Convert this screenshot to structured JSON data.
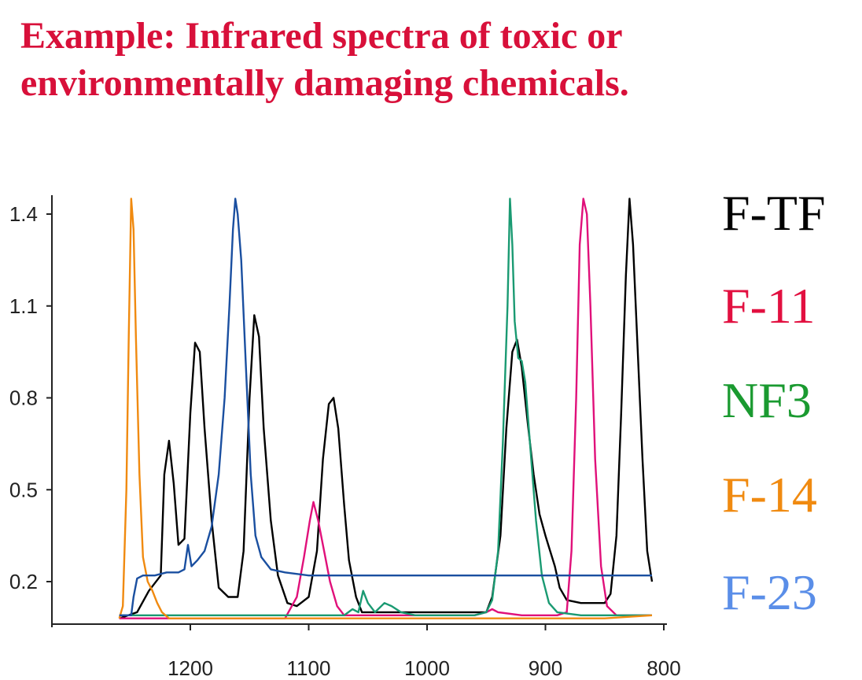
{
  "title": {
    "line1": "Example: Infrared spectra of toxic or",
    "line2": "environmentally damaging chemicals."
  },
  "chart_data": {
    "type": "line",
    "x_ticks": [
      1200,
      1100,
      1000,
      900,
      800
    ],
    "y_ticks": [
      "1.4",
      "1.1",
      "0.8",
      "0.5",
      "0.2"
    ],
    "xlim": [
      1260,
      800
    ],
    "ylim": [
      0.08,
      1.48
    ],
    "series": [
      {
        "name": "F-TF",
        "color": "#000000",
        "points": [
          [
            1260,
            0.08
          ],
          [
            1245,
            0.1
          ],
          [
            1235,
            0.17
          ],
          [
            1225,
            0.22
          ],
          [
            1222,
            0.55
          ],
          [
            1218,
            0.66
          ],
          [
            1214,
            0.52
          ],
          [
            1210,
            0.32
          ],
          [
            1205,
            0.34
          ],
          [
            1200,
            0.75
          ],
          [
            1196,
            0.98
          ],
          [
            1192,
            0.95
          ],
          [
            1188,
            0.7
          ],
          [
            1182,
            0.4
          ],
          [
            1176,
            0.18
          ],
          [
            1168,
            0.15
          ],
          [
            1160,
            0.15
          ],
          [
            1155,
            0.3
          ],
          [
            1150,
            0.8
          ],
          [
            1146,
            1.07
          ],
          [
            1142,
            1.0
          ],
          [
            1138,
            0.7
          ],
          [
            1132,
            0.4
          ],
          [
            1126,
            0.22
          ],
          [
            1118,
            0.13
          ],
          [
            1110,
            0.12
          ],
          [
            1100,
            0.15
          ],
          [
            1093,
            0.3
          ],
          [
            1088,
            0.6
          ],
          [
            1083,
            0.78
          ],
          [
            1079,
            0.8
          ],
          [
            1075,
            0.7
          ],
          [
            1070,
            0.45
          ],
          [
            1066,
            0.27
          ],
          [
            1060,
            0.15
          ],
          [
            1055,
            0.1
          ],
          [
            1045,
            0.1
          ],
          [
            1035,
            0.1
          ],
          [
            1025,
            0.1
          ],
          [
            1015,
            0.1
          ],
          [
            1005,
            0.1
          ],
          [
            995,
            0.1
          ],
          [
            985,
            0.1
          ],
          [
            975,
            0.1
          ],
          [
            965,
            0.1
          ],
          [
            955,
            0.1
          ],
          [
            950,
            0.1
          ],
          [
            945,
            0.15
          ],
          [
            938,
            0.35
          ],
          [
            933,
            0.7
          ],
          [
            928,
            0.95
          ],
          [
            924,
            0.99
          ],
          [
            920,
            0.9
          ],
          [
            915,
            0.72
          ],
          [
            910,
            0.55
          ],
          [
            905,
            0.42
          ],
          [
            900,
            0.35
          ],
          [
            896,
            0.3
          ],
          [
            892,
            0.25
          ],
          [
            888,
            0.18
          ],
          [
            882,
            0.14
          ],
          [
            870,
            0.13
          ],
          [
            860,
            0.13
          ],
          [
            850,
            0.13
          ],
          [
            845,
            0.16
          ],
          [
            840,
            0.35
          ],
          [
            836,
            0.75
          ],
          [
            832,
            1.2
          ],
          [
            829,
            1.45
          ],
          [
            826,
            1.3
          ],
          [
            822,
            0.95
          ],
          [
            818,
            0.6
          ],
          [
            814,
            0.3
          ],
          [
            810,
            0.2
          ]
        ]
      },
      {
        "name": "F-11",
        "color": "#e0107a",
        "points": [
          [
            1260,
            0.08
          ],
          [
            1200,
            0.08
          ],
          [
            1150,
            0.08
          ],
          [
            1120,
            0.08
          ],
          [
            1110,
            0.15
          ],
          [
            1104,
            0.28
          ],
          [
            1099,
            0.4
          ],
          [
            1096,
            0.46
          ],
          [
            1092,
            0.4
          ],
          [
            1087,
            0.3
          ],
          [
            1082,
            0.2
          ],
          [
            1076,
            0.12
          ],
          [
            1070,
            0.09
          ],
          [
            1060,
            0.09
          ],
          [
            1000,
            0.09
          ],
          [
            980,
            0.09
          ],
          [
            960,
            0.09
          ],
          [
            950,
            0.1
          ],
          [
            945,
            0.11
          ],
          [
            940,
            0.1
          ],
          [
            920,
            0.09
          ],
          [
            900,
            0.09
          ],
          [
            890,
            0.09
          ],
          [
            882,
            0.1
          ],
          [
            878,
            0.3
          ],
          [
            874,
            0.8
          ],
          [
            871,
            1.3
          ],
          [
            868,
            1.45
          ],
          [
            865,
            1.4
          ],
          [
            862,
            1.1
          ],
          [
            858,
            0.6
          ],
          [
            853,
            0.25
          ],
          [
            848,
            0.12
          ],
          [
            840,
            0.09
          ],
          [
            820,
            0.09
          ],
          [
            810,
            0.09
          ]
        ]
      },
      {
        "name": "NF3",
        "color": "#1a9a72",
        "points": [
          [
            1260,
            0.09
          ],
          [
            1200,
            0.09
          ],
          [
            1150,
            0.09
          ],
          [
            1100,
            0.09
          ],
          [
            1070,
            0.09
          ],
          [
            1063,
            0.11
          ],
          [
            1058,
            0.1
          ],
          [
            1054,
            0.17
          ],
          [
            1050,
            0.13
          ],
          [
            1044,
            0.1
          ],
          [
            1036,
            0.13
          ],
          [
            1030,
            0.12
          ],
          [
            1022,
            0.1
          ],
          [
            1010,
            0.09
          ],
          [
            1000,
            0.09
          ],
          [
            980,
            0.09
          ],
          [
            960,
            0.09
          ],
          [
            950,
            0.1
          ],
          [
            945,
            0.14
          ],
          [
            940,
            0.3
          ],
          [
            936,
            0.65
          ],
          [
            932,
            1.1
          ],
          [
            930,
            1.45
          ],
          [
            928,
            1.3
          ],
          [
            926,
            1.05
          ],
          [
            923,
            0.93
          ],
          [
            920,
            0.92
          ],
          [
            917,
            0.85
          ],
          [
            913,
            0.65
          ],
          [
            908,
            0.4
          ],
          [
            903,
            0.22
          ],
          [
            897,
            0.13
          ],
          [
            890,
            0.1
          ],
          [
            870,
            0.09
          ],
          [
            840,
            0.09
          ],
          [
            810,
            0.09
          ]
        ]
      },
      {
        "name": "F-14",
        "color": "#f08a10",
        "points": [
          [
            1260,
            0.08
          ],
          [
            1257,
            0.12
          ],
          [
            1254,
            0.5
          ],
          [
            1252,
            1.0
          ],
          [
            1250,
            1.45
          ],
          [
            1248,
            1.35
          ],
          [
            1246,
            1.0
          ],
          [
            1243,
            0.55
          ],
          [
            1240,
            0.28
          ],
          [
            1236,
            0.2
          ],
          [
            1232,
            0.17
          ],
          [
            1228,
            0.13
          ],
          [
            1224,
            0.1
          ],
          [
            1218,
            0.08
          ],
          [
            1200,
            0.08
          ],
          [
            1150,
            0.08
          ],
          [
            1100,
            0.08
          ],
          [
            1050,
            0.08
          ],
          [
            1000,
            0.08
          ],
          [
            950,
            0.08
          ],
          [
            900,
            0.08
          ],
          [
            850,
            0.08
          ],
          [
            810,
            0.09
          ]
        ]
      },
      {
        "name": "F-23",
        "color": "#1a4fa0",
        "points": [
          [
            1260,
            0.09
          ],
          [
            1250,
            0.09
          ],
          [
            1248,
            0.15
          ],
          [
            1245,
            0.21
          ],
          [
            1240,
            0.22
          ],
          [
            1230,
            0.22
          ],
          [
            1220,
            0.23
          ],
          [
            1210,
            0.23
          ],
          [
            1205,
            0.24
          ],
          [
            1202,
            0.32
          ],
          [
            1199,
            0.25
          ],
          [
            1194,
            0.27
          ],
          [
            1188,
            0.3
          ],
          [
            1182,
            0.38
          ],
          [
            1176,
            0.55
          ],
          [
            1171,
            0.8
          ],
          [
            1167,
            1.1
          ],
          [
            1164,
            1.35
          ],
          [
            1162,
            1.45
          ],
          [
            1160,
            1.4
          ],
          [
            1157,
            1.25
          ],
          [
            1153,
            0.9
          ],
          [
            1149,
            0.55
          ],
          [
            1145,
            0.35
          ],
          [
            1140,
            0.28
          ],
          [
            1132,
            0.24
          ],
          [
            1120,
            0.23
          ],
          [
            1100,
            0.22
          ],
          [
            1080,
            0.22
          ],
          [
            1060,
            0.22
          ],
          [
            1040,
            0.22
          ],
          [
            1020,
            0.22
          ],
          [
            1000,
            0.22
          ],
          [
            980,
            0.22
          ],
          [
            960,
            0.22
          ],
          [
            940,
            0.22
          ],
          [
            920,
            0.22
          ],
          [
            900,
            0.22
          ],
          [
            880,
            0.22
          ],
          [
            860,
            0.22
          ],
          [
            840,
            0.22
          ],
          [
            820,
            0.22
          ],
          [
            810,
            0.22
          ]
        ]
      }
    ]
  }
}
